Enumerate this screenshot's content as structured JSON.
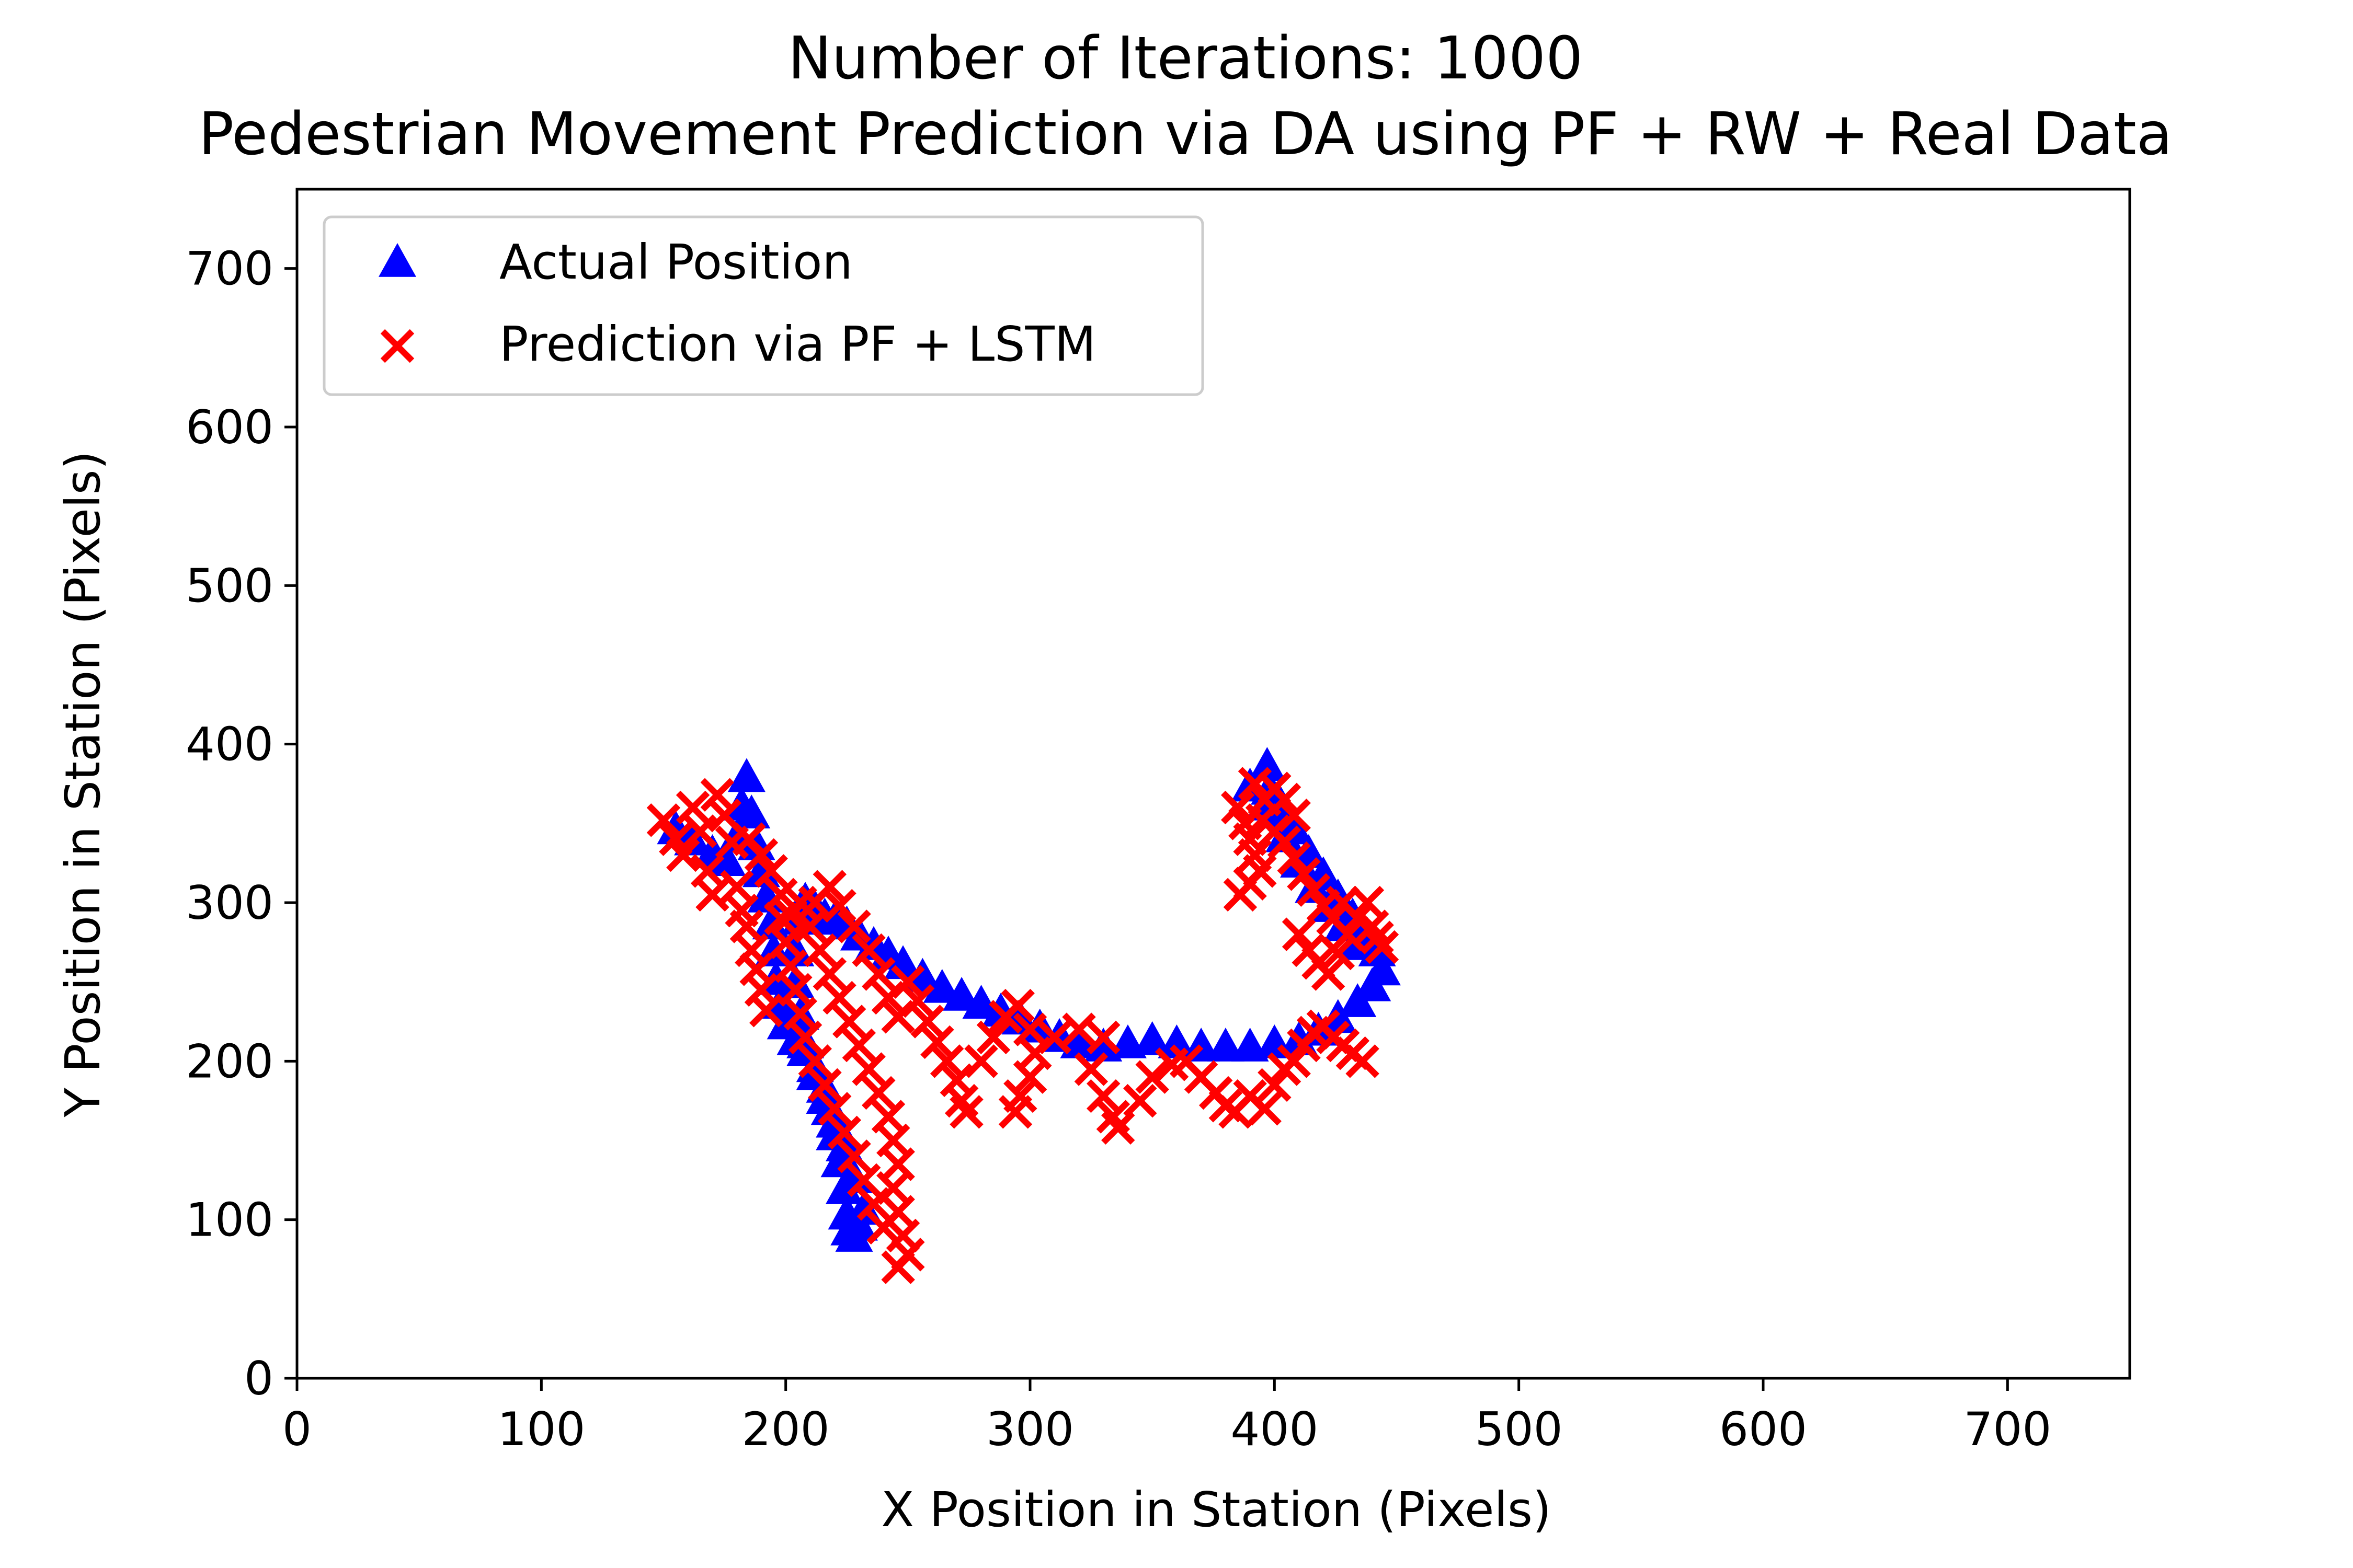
{
  "chart_data": {
    "type": "scatter",
    "title": "Number of Iterations: 1000\nPedestrian Movement Prediction via DA using PF + RW + Real Data",
    "title_lines": [
      "Number of Iterations: 1000",
      "Pedestrian Movement Prediction via DA using PF + RW + Real Data"
    ],
    "xlabel": "X Position in Station (Pixels)",
    "ylabel": "Y Position in Station (Pixels)",
    "xlim": [
      0,
      750
    ],
    "ylim": [
      0,
      750
    ],
    "xticks": [
      0,
      100,
      200,
      300,
      400,
      500,
      600,
      700
    ],
    "yticks": [
      0,
      100,
      200,
      300,
      400,
      500,
      600,
      700
    ],
    "grid": false,
    "legend_position": "top-left",
    "series": [
      {
        "name": "Actual Position",
        "marker": "triangle",
        "color": "#0000ff",
        "points": [
          [
            155,
            345
          ],
          [
            162,
            338
          ],
          [
            170,
            330
          ],
          [
            176,
            325
          ],
          [
            180,
            340
          ],
          [
            182,
            360
          ],
          [
            184,
            378
          ],
          [
            186,
            355
          ],
          [
            188,
            335
          ],
          [
            190,
            318
          ],
          [
            192,
            302
          ],
          [
            194,
            285
          ],
          [
            195,
            268
          ],
          [
            196,
            250
          ],
          [
            198,
            235
          ],
          [
            200,
            222
          ],
          [
            204,
            212
          ],
          [
            208,
            205
          ],
          [
            212,
            195
          ],
          [
            216,
            182
          ],
          [
            218,
            168
          ],
          [
            220,
            152
          ],
          [
            222,
            135
          ],
          [
            224,
            118
          ],
          [
            225,
            102
          ],
          [
            226,
            92
          ],
          [
            228,
            88
          ],
          [
            230,
            95
          ],
          [
            232,
            105
          ],
          [
            228,
            125
          ],
          [
            224,
            145
          ],
          [
            220,
            160
          ],
          [
            216,
            175
          ],
          [
            212,
            190
          ],
          [
            208,
            210
          ],
          [
            206,
            228
          ],
          [
            204,
            248
          ],
          [
            204,
            268
          ],
          [
            206,
            288
          ],
          [
            208,
            300
          ],
          [
            212,
            295
          ],
          [
            216,
            290
          ],
          [
            220,
            288
          ],
          [
            225,
            285
          ],
          [
            230,
            278
          ],
          [
            236,
            272
          ],
          [
            242,
            266
          ],
          [
            248,
            260
          ],
          [
            256,
            252
          ],
          [
            264,
            245
          ],
          [
            272,
            240
          ],
          [
            280,
            235
          ],
          [
            288,
            230
          ],
          [
            296,
            225
          ],
          [
            304,
            220
          ],
          [
            312,
            214
          ],
          [
            320,
            210
          ],
          [
            330,
            208
          ],
          [
            340,
            210
          ],
          [
            350,
            212
          ],
          [
            360,
            210
          ],
          [
            370,
            208
          ],
          [
            380,
            208
          ],
          [
            390,
            208
          ],
          [
            400,
            210
          ],
          [
            410,
            212
          ],
          [
            418,
            218
          ],
          [
            426,
            226
          ],
          [
            434,
            236
          ],
          [
            440,
            246
          ],
          [
            444,
            256
          ],
          [
            442,
            268
          ],
          [
            438,
            278
          ],
          [
            432,
            290
          ],
          [
            426,
            302
          ],
          [
            420,
            316
          ],
          [
            414,
            330
          ],
          [
            408,
            345
          ],
          [
            402,
            362
          ],
          [
            397,
            385
          ],
          [
            398,
            370
          ],
          [
            400,
            355
          ],
          [
            404,
            340
          ],
          [
            410,
            324
          ],
          [
            416,
            308
          ],
          [
            422,
            296
          ],
          [
            428,
            284
          ],
          [
            434,
            272
          ],
          [
            390,
            372
          ],
          [
            396,
            360
          ]
        ]
      },
      {
        "name": "Prediction via PF + LSTM",
        "marker": "x",
        "color": "#ff0000",
        "points": [
          [
            150,
            352
          ],
          [
            155,
            340
          ],
          [
            158,
            330
          ],
          [
            162,
            360
          ],
          [
            165,
            345
          ],
          [
            168,
            320
          ],
          [
            170,
            305
          ],
          [
            172,
            368
          ],
          [
            175,
            355
          ],
          [
            178,
            338
          ],
          [
            180,
            310
          ],
          [
            182,
            295
          ],
          [
            184,
            285
          ],
          [
            186,
            270
          ],
          [
            188,
            258
          ],
          [
            190,
            245
          ],
          [
            192,
            232
          ],
          [
            185,
            340
          ],
          [
            190,
            330
          ],
          [
            194,
            320
          ],
          [
            198,
            305
          ],
          [
            202,
            292
          ],
          [
            206,
            300
          ],
          [
            210,
            285
          ],
          [
            214,
            270
          ],
          [
            218,
            255
          ],
          [
            222,
            240
          ],
          [
            226,
            225
          ],
          [
            230,
            210
          ],
          [
            234,
            195
          ],
          [
            238,
            180
          ],
          [
            242,
            165
          ],
          [
            244,
            150
          ],
          [
            246,
            135
          ],
          [
            244,
            120
          ],
          [
            246,
            105
          ],
          [
            248,
            90
          ],
          [
            250,
            78
          ],
          [
            246,
            70
          ],
          [
            240,
            95
          ],
          [
            236,
            110
          ],
          [
            232,
            125
          ],
          [
            228,
            140
          ],
          [
            224,
            155
          ],
          [
            220,
            170
          ],
          [
            216,
            185
          ],
          [
            212,
            200
          ],
          [
            208,
            215
          ],
          [
            206,
            230
          ],
          [
            204,
            245
          ],
          [
            202,
            260
          ],
          [
            200,
            275
          ],
          [
            198,
            290
          ],
          [
            212,
            300
          ],
          [
            218,
            310
          ],
          [
            222,
            298
          ],
          [
            228,
            285
          ],
          [
            234,
            270
          ],
          [
            238,
            255
          ],
          [
            242,
            240
          ],
          [
            246,
            228
          ],
          [
            250,
            250
          ],
          [
            254,
            238
          ],
          [
            258,
            225
          ],
          [
            262,
            212
          ],
          [
            266,
            200
          ],
          [
            270,
            188
          ],
          [
            272,
            175
          ],
          [
            274,
            168
          ],
          [
            280,
            200
          ],
          [
            285,
            215
          ],
          [
            290,
            228
          ],
          [
            295,
            235
          ],
          [
            300,
            220
          ],
          [
            302,
            205
          ],
          [
            300,
            190
          ],
          [
            296,
            178
          ],
          [
            294,
            168
          ],
          [
            310,
            215
          ],
          [
            320,
            220
          ],
          [
            330,
            215
          ],
          [
            325,
            195
          ],
          [
            330,
            178
          ],
          [
            334,
            165
          ],
          [
            336,
            158
          ],
          [
            345,
            175
          ],
          [
            350,
            190
          ],
          [
            358,
            198
          ],
          [
            364,
            200
          ],
          [
            370,
            190
          ],
          [
            376,
            180
          ],
          [
            380,
            172
          ],
          [
            384,
            168
          ],
          [
            390,
            178
          ],
          [
            396,
            170
          ],
          [
            400,
            185
          ],
          [
            404,
            195
          ],
          [
            408,
            200
          ],
          [
            412,
            210
          ],
          [
            416,
            218
          ],
          [
            420,
            222
          ],
          [
            424,
            215
          ],
          [
            428,
            210
          ],
          [
            432,
            205
          ],
          [
            436,
            200
          ],
          [
            410,
            280
          ],
          [
            414,
            270
          ],
          [
            418,
            262
          ],
          [
            422,
            255
          ],
          [
            426,
            268
          ],
          [
            430,
            280
          ],
          [
            434,
            290
          ],
          [
            438,
            300
          ],
          [
            440,
            285
          ],
          [
            442,
            278
          ],
          [
            444,
            272
          ],
          [
            385,
            360
          ],
          [
            388,
            350
          ],
          [
            390,
            340
          ],
          [
            392,
            330
          ],
          [
            394,
            320
          ],
          [
            390,
            312
          ],
          [
            386,
            305
          ],
          [
            395,
            352
          ],
          [
            400,
            345
          ],
          [
            404,
            338
          ],
          [
            408,
            328
          ],
          [
            412,
            318
          ],
          [
            416,
            308
          ],
          [
            420,
            298
          ],
          [
            424,
            290
          ],
          [
            428,
            300
          ],
          [
            400,
            372
          ],
          [
            396,
            365
          ],
          [
            392,
            375
          ],
          [
            404,
            365
          ],
          [
            408,
            355
          ]
        ]
      }
    ]
  }
}
